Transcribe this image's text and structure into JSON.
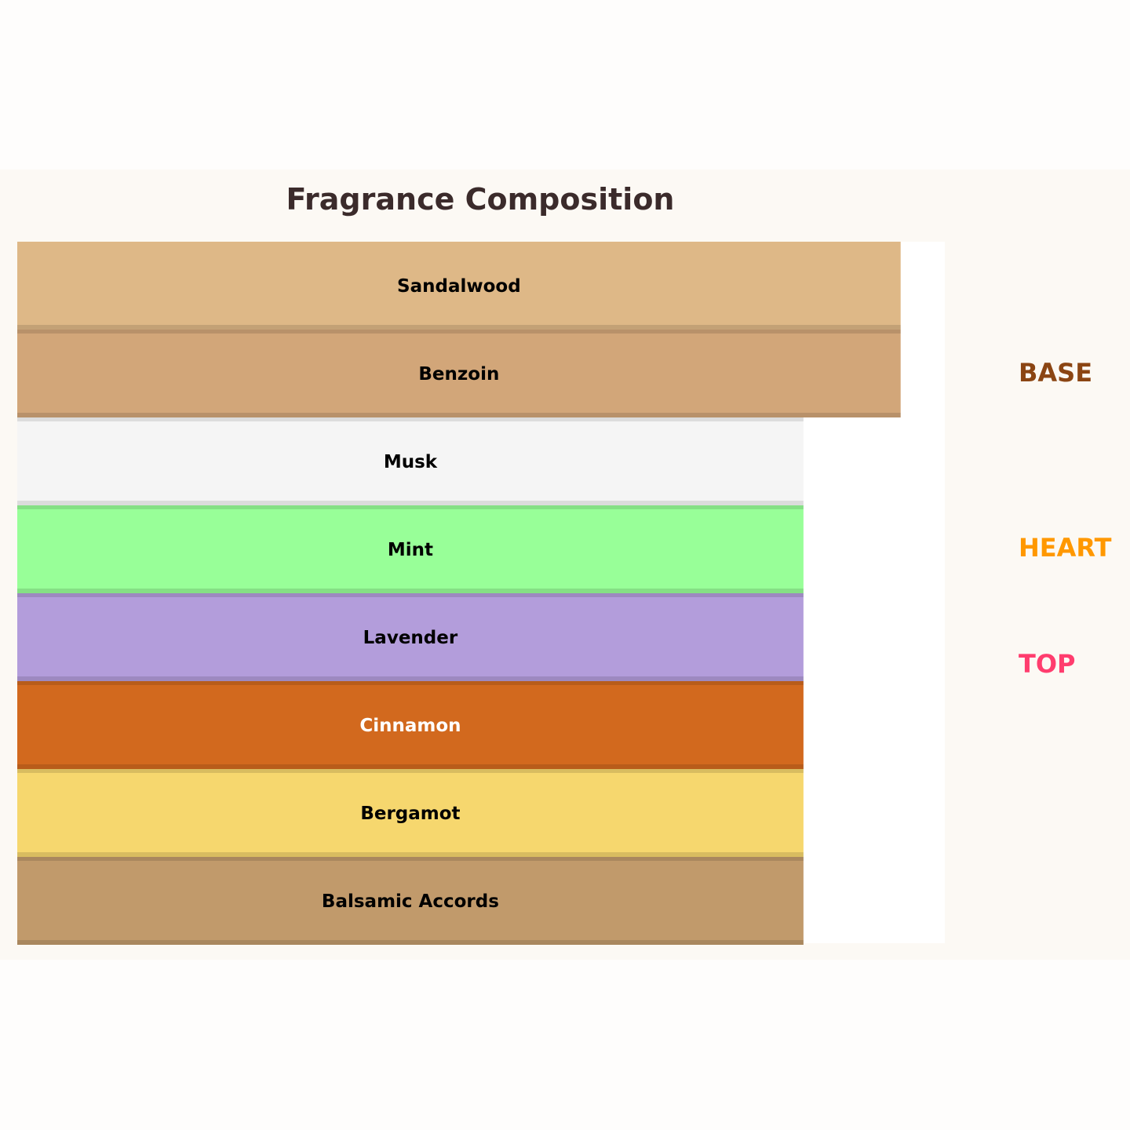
{
  "chart_data": {
    "type": "bar",
    "orientation": "horizontal",
    "title": "Fragrance Composition",
    "xlim": [
      0,
      1.05
    ],
    "grid": false,
    "layers": [
      {
        "name": "Sandalwood",
        "value": 1.0,
        "color": "#DEB887",
        "label_color": "#000000"
      },
      {
        "name": "Benzoin",
        "value": 1.0,
        "color": "#D2A679",
        "label_color": "#000000"
      },
      {
        "name": "Musk",
        "value": 0.89,
        "color": "#F5F5F5",
        "label_color": "#000000"
      },
      {
        "name": "Mint",
        "value": 0.89,
        "color": "#98FF98",
        "label_color": "#000000"
      },
      {
        "name": "Lavender",
        "value": 0.89,
        "color": "#B39DDB",
        "label_color": "#000000"
      },
      {
        "name": "Cinnamon",
        "value": 0.89,
        "color": "#D2691E",
        "label_color": "#FFFFFF"
      },
      {
        "name": "Bergamot",
        "value": 0.89,
        "color": "#F6D76E",
        "label_color": "#000000"
      },
      {
        "name": "Balsamic Accords",
        "value": 0.89,
        "color": "#C19A6B",
        "label_color": "#000000"
      }
    ],
    "section_labels": [
      {
        "text": "BASE",
        "color": "#8B4513"
      },
      {
        "text": "HEART",
        "color": "#FF9800"
      },
      {
        "text": "TOP",
        "color": "#FF3D6E"
      }
    ]
  }
}
